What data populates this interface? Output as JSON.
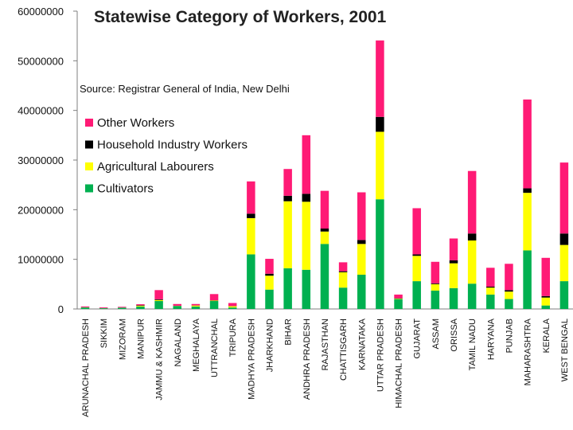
{
  "chart_data": {
    "type": "bar",
    "stacked": true,
    "title": "Statewise Category of Workers, 2001",
    "source": "Source: Registrar General of India, New Delhi",
    "xlabel": "",
    "ylabel": "",
    "ylim": [
      0,
      60000000
    ],
    "y_ticks": [
      "0",
      "10000000",
      "20000000",
      "30000000",
      "40000000",
      "50000000",
      "60000000"
    ],
    "legend_position": "top-left",
    "categories": [
      "ARUNACHAL PRADESH",
      "SIKKIM",
      "MIZORAM",
      "MANIPUR",
      "JAMMU & KASHMIR",
      "NAGALAND",
      "MEGHALAYA",
      "UTTRANCHAL",
      "TRIPURA",
      "MADHYA PRADESH",
      "JHARKHAND",
      "BIHAR",
      "ANDHRA PRADESH",
      "RAJASTHAN",
      "CHATTISGARH",
      "KARNATAKA",
      "UTTAR PRADESH",
      "HIMACHAL PRADESH",
      "GUJARAT",
      "ASSAM",
      "ORISSA",
      "TAMIL NADU",
      "HARYANA",
      "PUNJAB",
      "MAHARASHTRA",
      "KERALA",
      "WEST BENGAL"
    ],
    "series": [
      {
        "name": "Cultivators",
        "color": "#00b050",
        "values": [
          300000,
          150000,
          250000,
          500000,
          1600000,
          600000,
          500000,
          1600000,
          300000,
          11000000,
          3900000,
          8200000,
          7900000,
          13100000,
          4300000,
          6900000,
          22100000,
          2000000,
          5600000,
          3700000,
          4200000,
          5100000,
          2900000,
          2000000,
          11800000,
          700000,
          5600000
        ]
      },
      {
        "name": "Agricultural Labourers",
        "color": "#ffff00",
        "values": [
          20000,
          10000,
          20000,
          150000,
          200000,
          30000,
          200000,
          100000,
          250000,
          7300000,
          2800000,
          13500000,
          13700000,
          2500000,
          3100000,
          6200000,
          13600000,
          100000,
          5100000,
          1300000,
          5000000,
          8700000,
          1400000,
          1500000,
          11600000,
          1600000,
          7300000
        ]
      },
      {
        "name": "Household Industry Workers",
        "color": "#000000",
        "values": [
          10000,
          5000,
          10000,
          100000,
          150000,
          20000,
          20000,
          50000,
          50000,
          900000,
          400000,
          1100000,
          1600000,
          600000,
          200000,
          800000,
          3000000,
          50000,
          300000,
          150000,
          600000,
          1400000,
          200000,
          300000,
          900000,
          300000,
          2300000
        ]
      },
      {
        "name": "Other Workers",
        "color": "#ff1a75",
        "values": [
          170000,
          145000,
          150000,
          200000,
          1850000,
          350000,
          280000,
          1250000,
          600000,
          6500000,
          3000000,
          5400000,
          11800000,
          7600000,
          1800000,
          9600000,
          15400000,
          750000,
          9300000,
          4350000,
          4400000,
          12600000,
          3800000,
          5300000,
          17900000,
          7700000,
          14300000
        ]
      }
    ]
  }
}
